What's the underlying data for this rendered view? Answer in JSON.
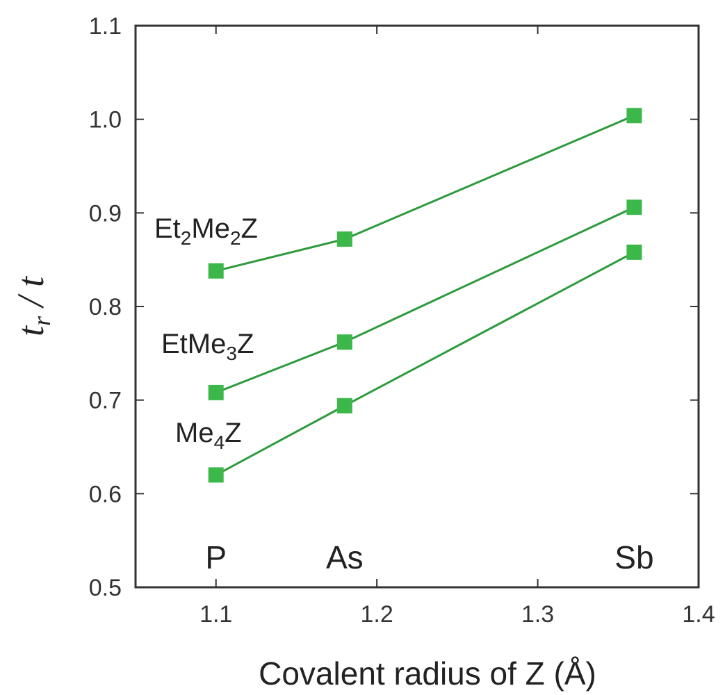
{
  "chart_data": {
    "type": "line",
    "xlabel": "Covalent radius of Z (Å)",
    "ylabel": {
      "main": "t",
      "sub": "r",
      "rest": " / t"
    },
    "xlim": [
      1.05,
      1.4
    ],
    "ylim": [
      0.5,
      1.1
    ],
    "xticks": [
      "1.1",
      "1.2",
      "1.3",
      "1.4"
    ],
    "yticks": [
      "0.5",
      "0.6",
      "0.7",
      "0.8",
      "0.9",
      "1.0",
      "1.1"
    ],
    "grid": false,
    "line_color": "#2e9a3e",
    "marker_color": "#3cb84a",
    "x": [
      1.1,
      1.18,
      1.36
    ],
    "series": [
      {
        "label": {
          "parts": [
            "Et",
            "2",
            "Me",
            "2",
            "Z"
          ]
        },
        "values": [
          0.838,
          0.872,
          1.004
        ]
      },
      {
        "label": {
          "parts": [
            "EtMe",
            "3",
            "Z"
          ]
        },
        "values": [
          0.708,
          0.762,
          0.906
        ]
      },
      {
        "label": {
          "parts": [
            "Me",
            "4",
            "Z"
          ]
        },
        "values": [
          0.62,
          0.694,
          0.858
        ]
      }
    ],
    "annotations": [
      {
        "text": "P",
        "x": 1.1
      },
      {
        "text": "As",
        "x": 1.18
      },
      {
        "text": "Sb",
        "x": 1.36
      }
    ]
  }
}
